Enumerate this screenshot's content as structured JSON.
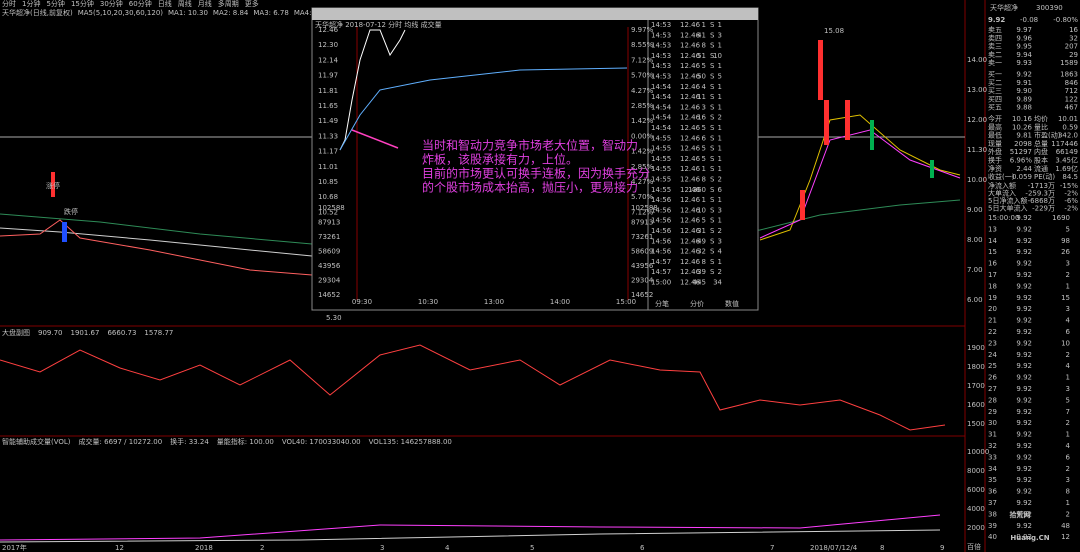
{
  "toolbar": [
    "分时",
    "1分钟",
    "5分钟",
    "15分钟",
    "30分钟",
    "60分钟",
    "日线",
    "周线",
    "月线",
    "多周期",
    "更多"
  ],
  "main_legend": [
    "天华超净(日线,前复权)",
    "MA5(5,10,20,30,60,120)",
    "MA1: 10.30",
    "MA2: 8.84",
    "MA3: 6.78",
    "MA4: 3.46",
    "MA5: 8.96",
    "MA6: 5.46"
  ],
  "main_axis": [
    "14.00",
    "13.00",
    "12.00",
    "11.30",
    "10.00",
    "9.00",
    "8.00",
    "7.00",
    "6.00"
  ],
  "main_marks": [
    "涨停",
    "跌停",
    "15.08",
    "5.30"
  ],
  "mid_legend": [
    "大盘副图",
    "909.70 ",
    "1901.67",
    "6660.73",
    "1578.77"
  ],
  "mid_axis": [
    "1900",
    "1800",
    "1700",
    "1600",
    "1500"
  ],
  "vol_legend": [
    "智能辅助成交量(VOL)",
    "成交量: 6697 / 10272.00",
    "换手: 33.24",
    "量能指标: 100.00",
    "VOL40: 170033040.00",
    "VOL135: 146257888.00"
  ],
  "vol_axis": [
    "10000",
    "8000",
    "6000",
    "4000",
    "2000",
    "百倍"
  ],
  "dates": [
    "2017年",
    "12",
    "2018",
    "2",
    "3",
    "4",
    "5",
    "6",
    "7",
    "2018/07/12/4",
    "8",
    "9"
  ],
  "popup": {
    "title": "天华超净(300390)  2018年07月12日 星期四 PageUp/Down:前后日 空格键:操作 通达信(R)",
    "subtitle": "天华超净   2018-07-12 分时 均线 成交量",
    "price_ticks": [
      "12.46",
      "12.30",
      "12.14",
      "11.97",
      "11.81",
      "11.65",
      "11.49",
      "11.33",
      "11.17",
      "11.01",
      "10.85",
      "10.68",
      "10.52"
    ],
    "pct_ticks": [
      "9.97%",
      "8.55%",
      "7.12%",
      "5.70%",
      "4.27%",
      "2.85%",
      "1.42%",
      "0.00%",
      "1.42%",
      "2.85%",
      "4.27%",
      "5.70%",
      "7.12%"
    ],
    "vol_ticks": [
      "102588",
      "87913",
      "73261",
      "58609",
      "43956",
      "29304",
      "14652"
    ],
    "times": [
      "09:30",
      "10:30",
      "13:00",
      "14:00",
      "15:00"
    ],
    "trades": [
      [
        "14:53",
        "12.46",
        "1",
        "S",
        "1"
      ],
      [
        "14:53",
        "12.46",
        "41",
        "S",
        "3"
      ],
      [
        "14:53",
        "12.46",
        "8",
        "S",
        "1"
      ],
      [
        "14:53",
        "12.46",
        "51",
        "S",
        "10"
      ],
      [
        "14:53",
        "12.46",
        "5",
        "S",
        "1"
      ],
      [
        "14:53",
        "12.46",
        "50",
        "S",
        "5"
      ],
      [
        "14:54",
        "12.46",
        "4",
        "S",
        "1"
      ],
      [
        "14:54",
        "12.46",
        "11",
        "S",
        "1"
      ],
      [
        "14:54",
        "12.46",
        "3",
        "S",
        "1"
      ],
      [
        "14:54",
        "12.46",
        "16",
        "S",
        "2"
      ],
      [
        "14:54",
        "12.46",
        "5",
        "S",
        "1"
      ],
      [
        "14:55",
        "12.46",
        "6",
        "S",
        "1"
      ],
      [
        "14:55",
        "12.46",
        "5",
        "S",
        "1"
      ],
      [
        "14:55",
        "12.46",
        "5",
        "S",
        "1"
      ],
      [
        "14:55",
        "12.46",
        "1",
        "S",
        "1"
      ],
      [
        "14:55",
        "12.46",
        "8",
        "S",
        "2"
      ],
      [
        "14:55",
        "12.46",
        "1360",
        "S",
        "6"
      ],
      [
        "14:56",
        "12.46",
        "1",
        "S",
        "1"
      ],
      [
        "14:56",
        "12.46",
        "10",
        "S",
        "3"
      ],
      [
        "14:56",
        "12.46",
        "5",
        "S",
        "1"
      ],
      [
        "14:56",
        "12.46",
        "31",
        "S",
        "2"
      ],
      [
        "14:56",
        "12.46",
        "49",
        "S",
        "3"
      ],
      [
        "14:56",
        "12.46",
        "32",
        "S",
        "4"
      ],
      [
        "14:57",
        "12.46",
        "8",
        "S",
        "1"
      ],
      [
        "14:57",
        "12.46",
        "39",
        "S",
        "2"
      ],
      [
        "15:00",
        "12.46",
        "445",
        "",
        "34"
      ]
    ],
    "tabs": [
      "分笔",
      "分价",
      "数值"
    ]
  },
  "annotation": [
    "当时和智动力竞争市场老大位置，智动力",
    "炸板，该股承接有力，上位。",
    "目前的市场更认可换手连板，因为换手充分",
    "的个股市场成本抬高，抛压小，更易接力"
  ],
  "quote": {
    "name": "天华超净",
    "code": "300390",
    "price": "9.92",
    "change": "-0.08",
    "pct": "-0.80%",
    "book": [
      [
        "卖五",
        "9.97",
        "16"
      ],
      [
        "卖四",
        "9.96",
        "32"
      ],
      [
        "卖三",
        "9.95",
        "207"
      ],
      [
        "卖二",
        "9.94",
        "29"
      ],
      [
        "卖一",
        "9.93",
        "1589"
      ],
      [
        "买一",
        "9.92",
        "1863"
      ],
      [
        "买二",
        "9.91",
        "846"
      ],
      [
        "买三",
        "9.90",
        "712"
      ],
      [
        "买四",
        "9.89",
        "122"
      ],
      [
        "买五",
        "9.88",
        "467"
      ]
    ],
    "stats": [
      [
        "今开",
        "10.16",
        "均价",
        "10.01"
      ],
      [
        "最高",
        "10.26",
        "量比",
        "0.59"
      ],
      [
        "最低",
        "9.81",
        "市盈(动)",
        "342.0"
      ],
      [
        "现量",
        "2098",
        "总量",
        "117446"
      ],
      [
        "外盘",
        "51297",
        "内盘",
        "66149"
      ],
      [
        "换手",
        "6.96%",
        "股本",
        "3.45亿"
      ],
      [
        "净资",
        "2.44",
        "流通",
        "1.69亿"
      ],
      [
        "收益(一)",
        "0.059",
        "PE(动)",
        "84.5"
      ]
    ],
    "flow": [
      [
        "净流入额",
        "-1713万",
        "-15%"
      ],
      [
        "大单流入",
        "-259.3万",
        "-2%"
      ],
      [
        "5日净流入额",
        "-6868万",
        "-6%"
      ],
      [
        "5日大单流入",
        "-229万",
        "-2%"
      ]
    ],
    "ticks": [
      [
        "15:00:00",
        "9.92",
        "1690"
      ],
      [
        "13",
        "9.92",
        "5"
      ],
      [
        "14",
        "9.92",
        "98"
      ],
      [
        "15",
        "9.92",
        "26"
      ],
      [
        "16",
        "9.92",
        "3"
      ],
      [
        "17",
        "9.92",
        "2"
      ],
      [
        "18",
        "9.92",
        "1"
      ],
      [
        "19",
        "9.92",
        "15"
      ],
      [
        "20",
        "9.92",
        "3"
      ],
      [
        "21",
        "9.92",
        "4"
      ],
      [
        "22",
        "9.92",
        "6"
      ],
      [
        "23",
        "9.92",
        "10"
      ],
      [
        "24",
        "9.92",
        "2"
      ],
      [
        "25",
        "9.92",
        "4"
      ],
      [
        "26",
        "9.92",
        "1"
      ],
      [
        "27",
        "9.92",
        "3"
      ],
      [
        "28",
        "9.92",
        "5"
      ],
      [
        "29",
        "9.92",
        "7"
      ],
      [
        "30",
        "9.92",
        "2"
      ],
      [
        "31",
        "9.92",
        "1"
      ],
      [
        "32",
        "9.92",
        "4"
      ],
      [
        "33",
        "9.92",
        "6"
      ],
      [
        "34",
        "9.92",
        "2"
      ],
      [
        "35",
        "9.92",
        "3"
      ],
      [
        "36",
        "9.92",
        "8"
      ],
      [
        "37",
        "9.92",
        "1"
      ],
      [
        "38",
        "9.92",
        "2"
      ],
      [
        "39",
        "9.92",
        "48"
      ],
      [
        "40",
        "9.92",
        "12"
      ]
    ]
  },
  "watermark": [
    "拾荒网",
    "Huang.CN"
  ]
}
